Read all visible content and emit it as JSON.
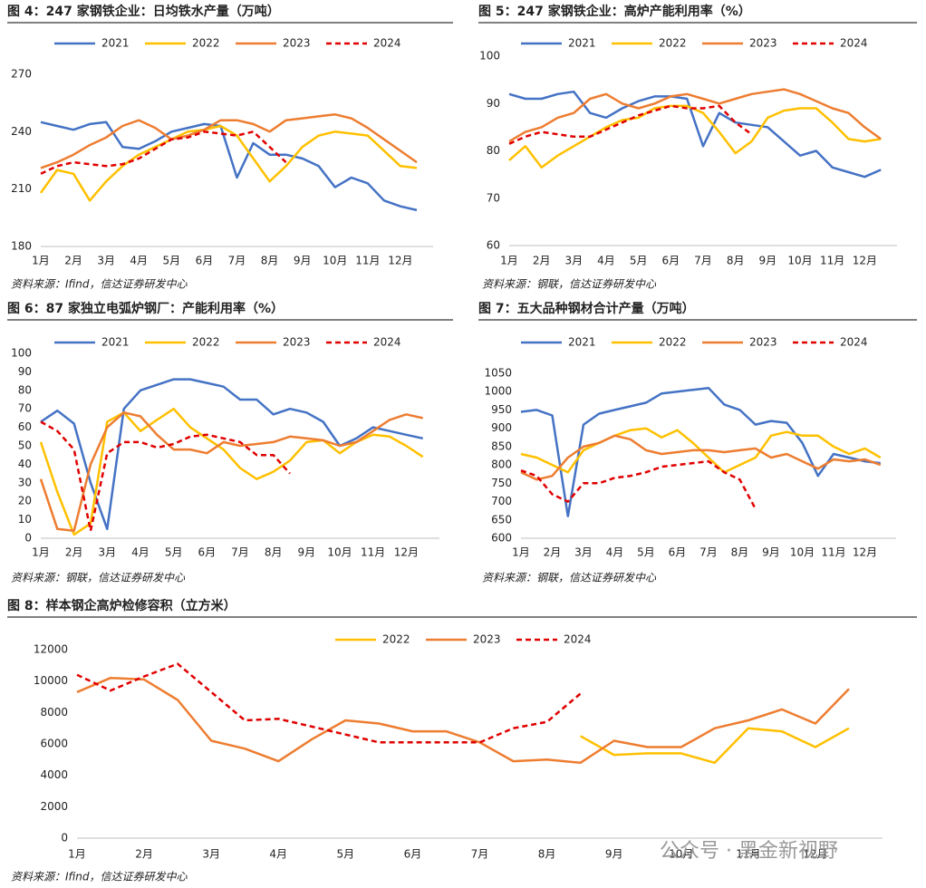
{
  "chart_data": [
    {
      "type": "line",
      "title": "图 4：247 家钢铁企业：日均铁水产量（万吨）",
      "source": "资料来源：Ifind，信达证券研发中心",
      "categories": [
        "1月",
        null,
        "2月",
        null,
        "3月",
        null,
        "4月",
        null,
        "5月",
        null,
        "6月",
        null,
        "7月",
        null,
        "8月",
        null,
        "9月",
        null,
        "10月",
        null,
        "11月",
        null,
        "12月",
        null
      ],
      "ylim": [
        180,
        270
      ],
      "yticks": [
        180,
        210,
        240,
        270
      ],
      "series": [
        {
          "name": "2021",
          "color": "#4472c4",
          "values": [
            245,
            243,
            241,
            244,
            245,
            232,
            231,
            235,
            240,
            242,
            244,
            243,
            216,
            234,
            228,
            228,
            226,
            222,
            211,
            216,
            213,
            204,
            201,
            199
          ]
        },
        {
          "name": "2022",
          "color": "#ffc000",
          "values": [
            208,
            220,
            218,
            204,
            214,
            222,
            228,
            232,
            236,
            240,
            241,
            243,
            238,
            226,
            214,
            222,
            232,
            238,
            240,
            239,
            238,
            230,
            222,
            221
          ]
        },
        {
          "name": "2023",
          "color": "#ed7d31",
          "values": [
            221,
            224,
            228,
            233,
            237,
            243,
            246,
            242,
            236,
            238,
            241,
            246,
            246,
            244,
            240,
            246,
            247,
            248,
            249,
            247,
            242,
            236,
            230,
            224
          ]
        },
        {
          "name": "2024",
          "color": "#e00000",
          "dashed": true,
          "values": [
            218,
            222,
            224,
            223,
            222,
            223,
            226,
            231,
            236,
            237,
            240,
            239,
            238,
            240,
            232,
            224,
            null,
            null,
            null,
            null,
            null,
            null,
            null,
            null
          ]
        }
      ]
    },
    {
      "type": "line",
      "title": "图 5：247 家钢铁企业：高炉产能利用率（%）",
      "source": "资料来源：钢联，信达证券研发中心",
      "categories": [
        "1月",
        null,
        "2月",
        null,
        "3月",
        null,
        "4月",
        null,
        "5月",
        null,
        "6月",
        null,
        "7月",
        null,
        "8月",
        null,
        "9月",
        null,
        "10月",
        null,
        "11月",
        null,
        "12月",
        null
      ],
      "ylim": [
        60,
        100
      ],
      "yticks": [
        60,
        70,
        80,
        90,
        100
      ],
      "series": [
        {
          "name": "2021",
          "color": "#4472c4",
          "values": [
            92,
            91,
            91,
            92,
            92.5,
            88,
            87,
            89,
            90.5,
            91.5,
            91.5,
            91,
            81,
            88,
            86,
            85.5,
            85,
            82,
            79,
            80,
            76.5,
            75.5,
            74.5,
            76
          ]
        },
        {
          "name": "2022",
          "color": "#ffc000",
          "values": [
            78,
            81,
            76.5,
            79,
            81,
            83,
            85,
            86.5,
            87,
            89,
            89.5,
            89.5,
            88,
            84,
            79.5,
            82,
            87,
            88.5,
            89,
            89,
            86,
            82.5,
            82,
            82.5
          ]
        },
        {
          "name": "2023",
          "color": "#ed7d31",
          "values": [
            82,
            84,
            85,
            87,
            88,
            91,
            92,
            90,
            89,
            90,
            91.5,
            92,
            91,
            90,
            91,
            92,
            92.5,
            93,
            92,
            90.5,
            89,
            88,
            85,
            82.5
          ]
        },
        {
          "name": "2024",
          "color": "#e00000",
          "dashed": true,
          "values": [
            81.5,
            83,
            84,
            83.5,
            83,
            83,
            84.5,
            86,
            87.5,
            88.5,
            89.5,
            89,
            89,
            89.5,
            86,
            83.5,
            null,
            null,
            null,
            null,
            null,
            null,
            null,
            null
          ]
        }
      ]
    },
    {
      "type": "line",
      "title": "图 6：87 家独立电弧炉钢厂：产能利用率（%）",
      "source": "资料来源：钢联，信达证券研发中心",
      "categories": [
        "1月",
        null,
        "2月",
        null,
        "3月",
        null,
        "4月",
        null,
        "5月",
        null,
        "6月",
        null,
        "7月",
        null,
        "8月",
        null,
        "9月",
        null,
        "10月",
        null,
        "11月",
        null,
        "12月",
        null
      ],
      "ylim": [
        0,
        100
      ],
      "yticks": [
        0,
        10,
        20,
        30,
        40,
        50,
        60,
        70,
        80,
        90,
        100
      ],
      "series": [
        {
          "name": "2021",
          "color": "#4472c4",
          "values": [
            63,
            69,
            62,
            30,
            5,
            70,
            80,
            83,
            86,
            86,
            84,
            82,
            75,
            75,
            67,
            70,
            68,
            63,
            50,
            54,
            60,
            58,
            56,
            54
          ]
        },
        {
          "name": "2022",
          "color": "#ffc000",
          "values": [
            52,
            25,
            2,
            8,
            63,
            68,
            58,
            64,
            70,
            60,
            54,
            48,
            38,
            32,
            36,
            42,
            52,
            53,
            46,
            52,
            56,
            55,
            50,
            44
          ]
        },
        {
          "name": "2023",
          "color": "#ed7d31",
          "values": [
            32,
            5,
            4,
            40,
            60,
            68,
            66,
            56,
            48,
            48,
            46,
            52,
            50,
            51,
            52,
            55,
            54,
            53,
            50,
            52,
            58,
            64,
            67,
            65
          ]
        },
        {
          "name": "2024",
          "color": "#e00000",
          "dashed": true,
          "values": [
            63,
            58,
            48,
            4,
            46,
            52,
            52,
            49,
            51,
            55,
            56,
            54,
            52,
            45,
            45,
            35,
            null,
            null,
            null,
            null,
            null,
            null,
            null,
            null
          ]
        }
      ]
    },
    {
      "type": "line",
      "title": "图 7：五大品种钢材合计产量（万吨）",
      "source": "资料来源：钢联，信达证券研发中心",
      "categories": [
        "1月",
        null,
        "2月",
        null,
        "3月",
        null,
        "4月",
        null,
        "5月",
        null,
        "6月",
        null,
        "7月",
        null,
        "8月",
        null,
        "9月",
        null,
        "10月",
        null,
        "11月",
        null,
        "12月",
        null
      ],
      "ylim": [
        600,
        1050
      ],
      "yticks": [
        600,
        650,
        700,
        750,
        800,
        850,
        900,
        950,
        1000,
        1050
      ],
      "series": [
        {
          "name": "2021",
          "color": "#4472c4",
          "values": [
            945,
            950,
            935,
            660,
            910,
            940,
            950,
            960,
            970,
            995,
            1000,
            1005,
            1010,
            965,
            950,
            910,
            920,
            915,
            860,
            770,
            830,
            820,
            810,
            805
          ]
        },
        {
          "name": "2022",
          "color": "#ffc000",
          "values": [
            830,
            820,
            800,
            780,
            840,
            860,
            880,
            895,
            900,
            875,
            895,
            860,
            820,
            780,
            800,
            820,
            880,
            890,
            880,
            880,
            850,
            830,
            845,
            820
          ]
        },
        {
          "name": "2023",
          "color": "#ed7d31",
          "values": [
            780,
            760,
            770,
            820,
            850,
            860,
            880,
            870,
            840,
            830,
            835,
            840,
            840,
            835,
            840,
            845,
            820,
            830,
            810,
            790,
            815,
            810,
            815,
            800
          ]
        },
        {
          "name": "2024",
          "color": "#e00000",
          "dashed": true,
          "values": [
            785,
            770,
            720,
            700,
            750,
            750,
            765,
            770,
            780,
            795,
            800,
            805,
            810,
            780,
            760,
            680,
            null,
            null,
            null,
            null,
            null,
            null,
            null,
            null
          ]
        }
      ]
    },
    {
      "type": "line",
      "title": "图 8：样本钢企高炉检修容积（立方米）",
      "source": "资料来源：Ifind，信达证券研发中心",
      "categories": [
        "1月",
        null,
        "2月",
        null,
        "3月",
        null,
        "4月",
        null,
        "5月",
        null,
        "6月",
        null,
        "7月",
        null,
        "8月",
        null,
        "9月",
        null,
        "10月",
        null,
        "11月",
        null,
        "12月",
        null
      ],
      "ylim": [
        0,
        12000
      ],
      "yticks": [
        0,
        2000,
        4000,
        6000,
        8000,
        10000,
        12000
      ],
      "series": [
        {
          "name": "2022",
          "color": "#ffc000",
          "values": [
            null,
            null,
            null,
            null,
            null,
            null,
            null,
            null,
            null,
            null,
            null,
            null,
            null,
            null,
            null,
            6500,
            5300,
            5400,
            5400,
            4800,
            7000,
            6800,
            5800,
            7000
          ]
        },
        {
          "name": "2023",
          "color": "#ed7d31",
          "values": [
            9300,
            10200,
            10100,
            8800,
            6200,
            5700,
            4900,
            6300,
            7500,
            7300,
            6800,
            6800,
            6100,
            4900,
            5000,
            4800,
            6200,
            5800,
            5800,
            7000,
            7500,
            8200,
            7300,
            9500
          ]
        },
        {
          "name": "2024",
          "color": "#e00000",
          "dashed": true,
          "values": [
            10400,
            9400,
            10300,
            11100,
            9300,
            7500,
            7600,
            7100,
            6600,
            6100,
            6100,
            6100,
            6100,
            7000,
            7400,
            9200,
            null,
            null,
            null,
            null,
            null,
            null,
            null,
            null
          ]
        }
      ],
      "watermark": "公众号 · 黑金新视野"
    }
  ]
}
